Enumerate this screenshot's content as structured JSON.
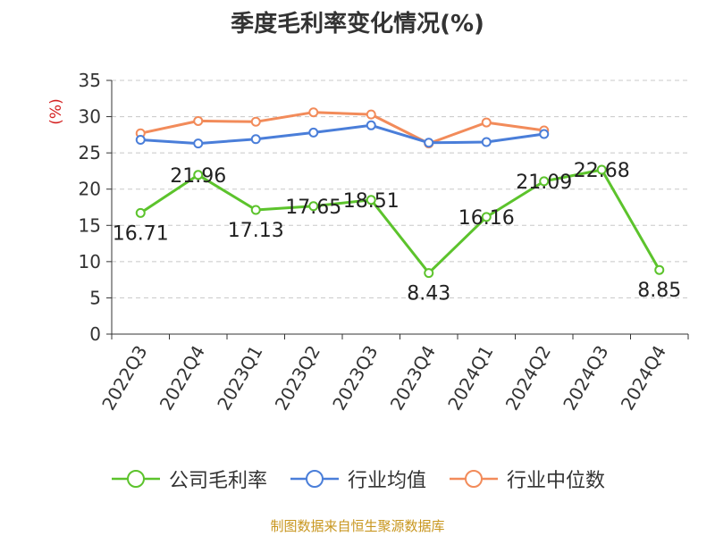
{
  "chart_data": {
    "type": "line",
    "title": "季度毛利率变化情况(%)",
    "ylabel": "(%)",
    "ylim": [
      0,
      35
    ],
    "yticks": [
      0,
      5,
      10,
      15,
      20,
      25,
      30,
      35
    ],
    "grid": true,
    "legend_position": "bottom",
    "categories": [
      "2022Q3",
      "2022Q4",
      "2023Q1",
      "2023Q2",
      "2023Q3",
      "2023Q4",
      "2024Q1",
      "2024Q2",
      "2024Q3",
      "2024Q4"
    ],
    "series": [
      {
        "name": "公司毛利率",
        "color": "#5cc32c",
        "show_labels": true,
        "values": [
          16.71,
          21.96,
          17.13,
          17.65,
          18.51,
          8.43,
          16.16,
          21.09,
          22.68,
          8.85
        ]
      },
      {
        "name": "行业均值",
        "color": "#4a7ed9",
        "show_labels": false,
        "values": [
          26.8,
          26.3,
          26.9,
          27.8,
          28.8,
          26.4,
          26.5,
          27.6,
          null,
          null
        ]
      },
      {
        "name": "行业中位数",
        "color": "#f28b5a",
        "show_labels": false,
        "values": [
          27.7,
          29.4,
          29.3,
          30.6,
          30.3,
          26.3,
          29.2,
          28.1,
          null,
          null
        ]
      }
    ]
  },
  "source": "制图数据来自恒生聚源数据库"
}
